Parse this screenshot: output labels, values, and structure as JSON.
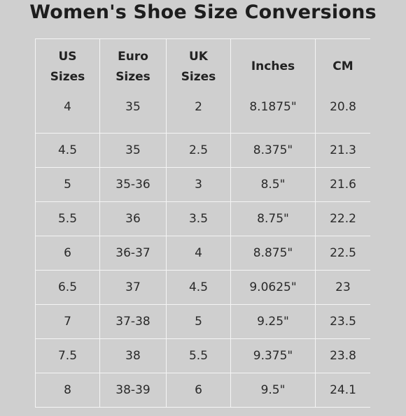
{
  "title": "Women's Shoe Size Conversions",
  "table": {
    "headers": [
      [
        "US",
        "Sizes"
      ],
      [
        "Euro",
        "Sizes"
      ],
      [
        "UK",
        "Sizes"
      ],
      [
        "Inches"
      ],
      [
        "CM"
      ]
    ],
    "rows": [
      [
        "4",
        "35",
        "2",
        "8.1875\"",
        "20.8"
      ],
      [
        "4.5",
        "35",
        "2.5",
        "8.375\"",
        "21.3"
      ],
      [
        "5",
        "35-36",
        "3",
        "8.5\"",
        "21.6"
      ],
      [
        "5.5",
        "36",
        "3.5",
        "8.75\"",
        "22.2"
      ],
      [
        "6",
        "36-37",
        "4",
        "8.875\"",
        "22.5"
      ],
      [
        "6.5",
        "37",
        "4.5",
        "9.0625\"",
        "23"
      ],
      [
        "7",
        "37-38",
        "5",
        "9.25\"",
        "23.5"
      ],
      [
        "7.5",
        "38",
        "5.5",
        "9.375\"",
        "23.8"
      ],
      [
        "8",
        "38-39",
        "6",
        "9.5\"",
        "24.1"
      ]
    ]
  }
}
